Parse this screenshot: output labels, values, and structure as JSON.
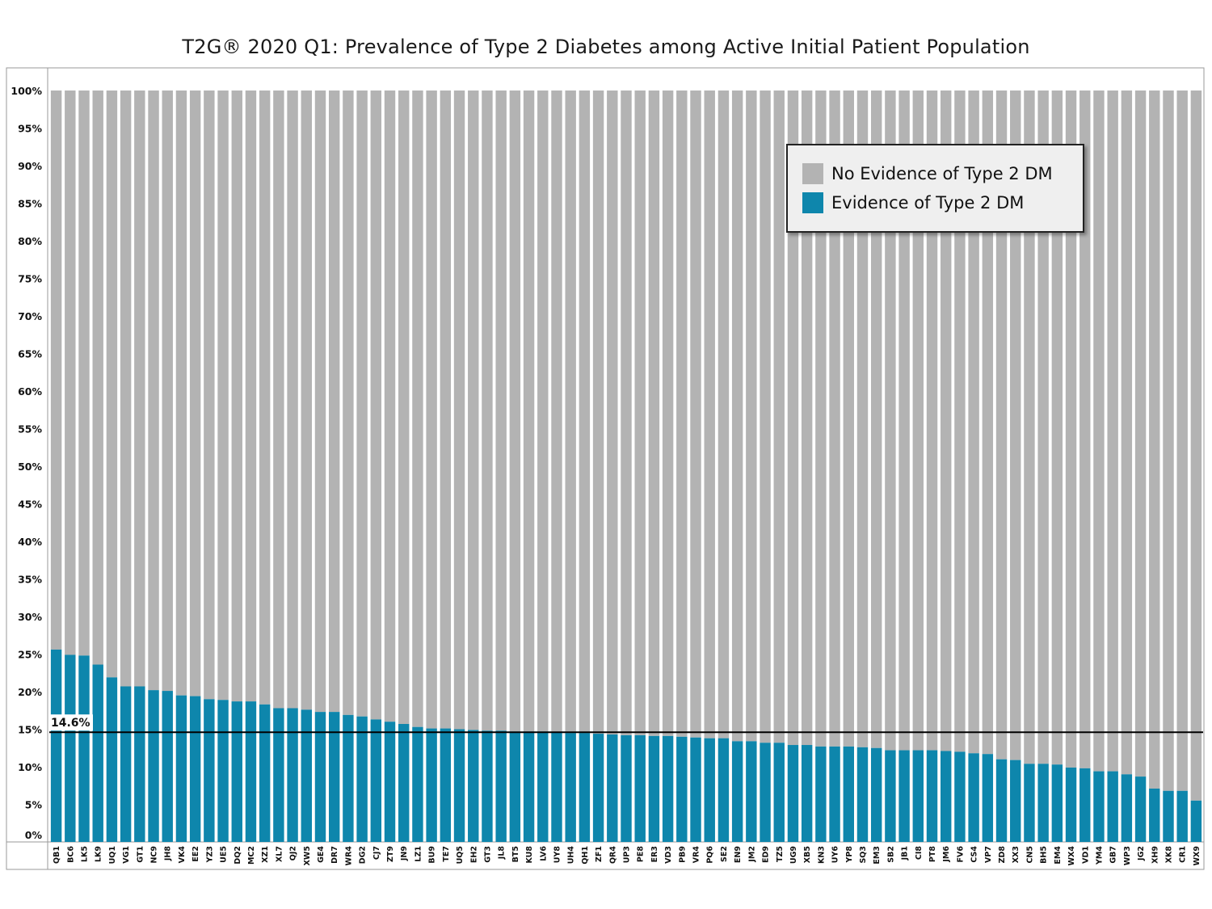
{
  "colors": {
    "no_evidence": "#b3b3b3",
    "evidence": "#0e86ac",
    "reference_line": "#000000"
  },
  "chart_data": {
    "type": "bar",
    "stacked": true,
    "title": "T2G® 2020 Q1: Prevalence of Type 2 Diabetes among Active Initial Patient Population",
    "xlabel": "",
    "ylabel": "",
    "ylim": [
      0,
      100
    ],
    "yticks": [
      "0%",
      "5%",
      "10%",
      "15%",
      "20%",
      "25%",
      "30%",
      "35%",
      "40%",
      "45%",
      "50%",
      "55%",
      "60%",
      "65%",
      "70%",
      "75%",
      "80%",
      "85%",
      "90%",
      "95%",
      "100%"
    ],
    "grid": false,
    "legend_position": "top-right",
    "reference_line": {
      "value": 14.6,
      "label": "14.6%"
    },
    "categories": [
      "QB1",
      "BC6",
      "LK5",
      "LK9",
      "UQ1",
      "VG1",
      "GT1",
      "NC9",
      "JH8",
      "VK4",
      "EE2",
      "YZ3",
      "UE5",
      "DQ2",
      "MC2",
      "XZ1",
      "XL7",
      "QJ2",
      "XW5",
      "GE4",
      "DR7",
      "WR4",
      "DG2",
      "CJ7",
      "ZT9",
      "JN9",
      "LZ1",
      "BU9",
      "TE7",
      "UQ5",
      "EH2",
      "GT3",
      "JL8",
      "BT5",
      "KU8",
      "LV6",
      "UY8",
      "UH4",
      "QH1",
      "ZF1",
      "QR4",
      "UP3",
      "PE8",
      "ER3",
      "VD3",
      "PB9",
      "VR4",
      "PQ6",
      "SE2",
      "EN9",
      "JM2",
      "ED9",
      "TZ5",
      "UG9",
      "XB5",
      "KN3",
      "UY6",
      "YP8",
      "SQ3",
      "EM3",
      "SB2",
      "JB1",
      "CI8",
      "PT8",
      "JM6",
      "FV6",
      "CS4",
      "VP7",
      "ZD8",
      "XX3",
      "CN5",
      "BH5",
      "EM4",
      "WX4",
      "VD1",
      "YM4",
      "GB7",
      "WP3",
      "JG2",
      "XH9",
      "XK8",
      "CR1",
      "WX9"
    ],
    "series": [
      {
        "name": "Evidence of Type 2 DM",
        "values": [
          25.6,
          24.9,
          24.8,
          23.6,
          21.9,
          20.7,
          20.7,
          20.2,
          20.1,
          19.5,
          19.4,
          19.0,
          18.9,
          18.7,
          18.7,
          18.3,
          17.8,
          17.8,
          17.6,
          17.3,
          17.3,
          16.9,
          16.7,
          16.3,
          16.0,
          15.7,
          15.3,
          15.1,
          15.1,
          15.0,
          14.9,
          14.8,
          14.8,
          14.7,
          14.7,
          14.7,
          14.6,
          14.5,
          14.5,
          14.4,
          14.3,
          14.2,
          14.2,
          14.1,
          14.1,
          14.0,
          13.9,
          13.8,
          13.8,
          13.4,
          13.4,
          13.2,
          13.2,
          12.9,
          12.9,
          12.7,
          12.7,
          12.7,
          12.6,
          12.5,
          12.2,
          12.2,
          12.2,
          12.2,
          12.1,
          12.0,
          11.8,
          11.7,
          11.0,
          10.9,
          10.4,
          10.4,
          10.3,
          9.9,
          9.8,
          9.4,
          9.4,
          9.0,
          8.7,
          7.1,
          6.8,
          6.8,
          5.5
        ]
      },
      {
        "name": "No Evidence of Type 2 DM",
        "values": [
          74.4,
          75.1,
          75.2,
          76.4,
          78.1,
          79.3,
          79.3,
          79.8,
          79.9,
          80.5,
          80.6,
          81.0,
          81.1,
          81.3,
          81.3,
          81.7,
          82.2,
          82.2,
          82.4,
          82.7,
          82.7,
          83.1,
          83.3,
          83.7,
          84.0,
          84.3,
          84.7,
          84.9,
          84.9,
          85.0,
          85.1,
          85.2,
          85.2,
          85.3,
          85.3,
          85.3,
          85.4,
          85.5,
          85.5,
          85.6,
          85.7,
          85.8,
          85.8,
          85.9,
          85.9,
          86.0,
          86.1,
          86.2,
          86.2,
          86.6,
          86.6,
          86.8,
          86.8,
          87.1,
          87.1,
          87.3,
          87.3,
          87.3,
          87.4,
          87.5,
          87.8,
          87.8,
          87.8,
          87.8,
          87.9,
          88.0,
          88.2,
          88.3,
          89.0,
          89.1,
          89.6,
          89.6,
          89.7,
          90.1,
          90.2,
          90.6,
          90.6,
          91.0,
          91.3,
          92.9,
          93.2,
          93.2,
          94.5
        ]
      }
    ]
  },
  "legend": {
    "items": [
      {
        "label": "No Evidence of Type 2 DM"
      },
      {
        "label": "Evidence of Type 2 DM"
      }
    ]
  }
}
